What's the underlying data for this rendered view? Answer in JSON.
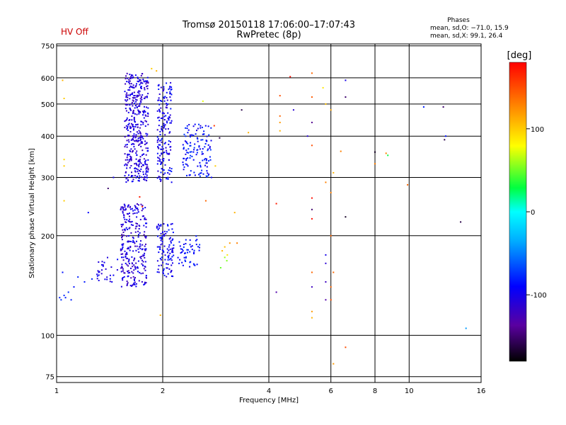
{
  "chart_data": {
    "type": "scatter",
    "title": "Tromsø 20150118 17:06:00–17:07:43",
    "subtitle": "RwPretec (8p)",
    "status": "HV Off",
    "xlabel": "Frequency [MHz]",
    "ylabel": "Stationary phase Virtual Height [km]",
    "xscale": "log",
    "yscale": "log",
    "xlim": [
      1,
      16
    ],
    "ylim": [
      72,
      760
    ],
    "xticks": [
      1,
      2,
      4,
      6,
      8,
      10,
      16
    ],
    "xtick_labels": [
      "1",
      "2",
      "4",
      "6",
      "8",
      "10",
      "16"
    ],
    "yticks": [
      75,
      100,
      200,
      300,
      400,
      500,
      600,
      750
    ],
    "ytick_labels": [
      "75",
      "100",
      "200",
      "300",
      "400",
      "500",
      "600",
      "750"
    ],
    "grid": true,
    "colorbar": {
      "label": "[deg]",
      "range": [
        -180,
        180
      ],
      "ticks": [
        100,
        0,
        -100
      ],
      "tick_labels": [
        "100",
        "0",
        "-100"
      ]
    },
    "stats": {
      "heading": "Phases",
      "line_o": "mean, sd,O: −71.0, 15.9",
      "line_x": "mean, sd,X:  99.1, 26.4"
    },
    "clusters": [
      {
        "f": [
          1.56,
          1.82
        ],
        "h": [
          290,
          620
        ],
        "phase": [
          -125,
          -90
        ],
        "n": 420
      },
      {
        "f": [
          1.93,
          2.12
        ],
        "h": [
          290,
          580
        ],
        "phase": [
          -115,
          -80
        ],
        "n": 170
      },
      {
        "f": [
          2.28,
          2.75
        ],
        "h": [
          300,
          440
        ],
        "phase": [
          -105,
          -70
        ],
        "n": 130
      },
      {
        "f": [
          1.52,
          1.8
        ],
        "h": [
          140,
          250
        ],
        "phase": [
          -125,
          -90
        ],
        "n": 280
      },
      {
        "f": [
          1.92,
          2.15
        ],
        "h": [
          150,
          220
        ],
        "phase": [
          -110,
          -80
        ],
        "n": 110
      },
      {
        "f": [
          2.2,
          2.55
        ],
        "h": [
          160,
          200
        ],
        "phase": [
          -100,
          -75
        ],
        "n": 50
      },
      {
        "f": [
          1.3,
          1.5
        ],
        "h": [
          145,
          175
        ],
        "phase": [
          -115,
          -85
        ],
        "n": 30
      }
    ],
    "points": [
      {
        "f": 1.02,
        "h": 130,
        "phase": -80
      },
      {
        "f": 1.03,
        "h": 128,
        "phase": -75
      },
      {
        "f": 1.05,
        "h": 132,
        "phase": -78
      },
      {
        "f": 1.06,
        "h": 130,
        "phase": -82
      },
      {
        "f": 1.08,
        "h": 135,
        "phase": -76
      },
      {
        "f": 1.1,
        "h": 128,
        "phase": -80
      },
      {
        "f": 1.12,
        "h": 140,
        "phase": -85
      },
      {
        "f": 1.04,
        "h": 155,
        "phase": -85
      },
      {
        "f": 1.15,
        "h": 150,
        "phase": -80
      },
      {
        "f": 1.2,
        "h": 145,
        "phase": -82
      },
      {
        "f": 1.26,
        "h": 148,
        "phase": -78
      },
      {
        "f": 1.23,
        "h": 235,
        "phase": -90
      },
      {
        "f": 1.45,
        "h": 300,
        "phase": -100
      },
      {
        "f": 1.4,
        "h": 278,
        "phase": -150
      },
      {
        "f": 1.72,
        "h": 262,
        "phase": 170
      },
      {
        "f": 1.75,
        "h": 245,
        "phase": 170
      },
      {
        "f": 1.04,
        "h": 590,
        "phase": 110
      },
      {
        "f": 1.05,
        "h": 520,
        "phase": 100
      },
      {
        "f": 1.05,
        "h": 340,
        "phase": 95
      },
      {
        "f": 1.05,
        "h": 325,
        "phase": 100
      },
      {
        "f": 1.05,
        "h": 255,
        "phase": 100
      },
      {
        "f": 1.86,
        "h": 640,
        "phase": 100
      },
      {
        "f": 1.92,
        "h": 630,
        "phase": 110
      },
      {
        "f": 1.97,
        "h": 115,
        "phase": 110
      },
      {
        "f": 2.6,
        "h": 510,
        "phase": 75
      },
      {
        "f": 2.8,
        "h": 430,
        "phase": 160
      },
      {
        "f": 2.75,
        "h": 300,
        "phase": -90
      },
      {
        "f": 2.9,
        "h": 395,
        "phase": -160
      },
      {
        "f": 2.82,
        "h": 325,
        "phase": 100
      },
      {
        "f": 2.65,
        "h": 255,
        "phase": 140
      },
      {
        "f": 2.95,
        "h": 180,
        "phase": 110
      },
      {
        "f": 3.0,
        "h": 185,
        "phase": 105
      },
      {
        "f": 3.05,
        "h": 175,
        "phase": 90
      },
      {
        "f": 3.1,
        "h": 190,
        "phase": 120
      },
      {
        "f": 3.0,
        "h": 172,
        "phase": 60
      },
      {
        "f": 3.04,
        "h": 168,
        "phase": 55
      },
      {
        "f": 2.92,
        "h": 160,
        "phase": 50
      },
      {
        "f": 3.25,
        "h": 190,
        "phase": 130
      },
      {
        "f": 3.2,
        "h": 235,
        "phase": 110
      },
      {
        "f": 3.35,
        "h": 480,
        "phase": -160
      },
      {
        "f": 3.5,
        "h": 410,
        "phase": 110
      },
      {
        "f": 4.3,
        "h": 530,
        "phase": 150
      },
      {
        "f": 4.3,
        "h": 460,
        "phase": 140
      },
      {
        "f": 4.3,
        "h": 440,
        "phase": 120
      },
      {
        "f": 4.3,
        "h": 415,
        "phase": 110
      },
      {
        "f": 4.2,
        "h": 250,
        "phase": 170
      },
      {
        "f": 4.2,
        "h": 135,
        "phase": -130
      },
      {
        "f": 4.6,
        "h": 605,
        "phase": 175
      },
      {
        "f": 4.7,
        "h": 480,
        "phase": -110
      },
      {
        "f": 5.3,
        "h": 620,
        "phase": 140
      },
      {
        "f": 5.3,
        "h": 525,
        "phase": 145
      },
      {
        "f": 5.3,
        "h": 440,
        "phase": -140
      },
      {
        "f": 5.3,
        "h": 375,
        "phase": 150
      },
      {
        "f": 5.3,
        "h": 260,
        "phase": 175
      },
      {
        "f": 5.3,
        "h": 240,
        "phase": -150
      },
      {
        "f": 5.3,
        "h": 225,
        "phase": 175
      },
      {
        "f": 5.3,
        "h": 155,
        "phase": 140
      },
      {
        "f": 5.3,
        "h": 140,
        "phase": -120
      },
      {
        "f": 5.3,
        "h": 118,
        "phase": 120
      },
      {
        "f": 5.3,
        "h": 113,
        "phase": 110
      },
      {
        "f": 5.15,
        "h": 400,
        "phase": -110
      },
      {
        "f": 5.7,
        "h": 560,
        "phase": 90
      },
      {
        "f": 5.8,
        "h": 500,
        "phase": 105
      },
      {
        "f": 5.8,
        "h": 290,
        "phase": 130
      },
      {
        "f": 5.8,
        "h": 175,
        "phase": -100
      },
      {
        "f": 5.8,
        "h": 165,
        "phase": -110
      },
      {
        "f": 5.8,
        "h": 145,
        "phase": -120
      },
      {
        "f": 5.8,
        "h": 128,
        "phase": -130
      },
      {
        "f": 6.0,
        "h": 480,
        "phase": 115
      },
      {
        "f": 6.0,
        "h": 270,
        "phase": 130
      },
      {
        "f": 6.0,
        "h": 200,
        "phase": 140
      },
      {
        "f": 6.0,
        "h": 140,
        "phase": 140
      },
      {
        "f": 6.0,
        "h": 128,
        "phase": 150
      },
      {
        "f": 6.1,
        "h": 310,
        "phase": 110
      },
      {
        "f": 6.1,
        "h": 155,
        "phase": 140
      },
      {
        "f": 6.1,
        "h": 82,
        "phase": 120
      },
      {
        "f": 6.6,
        "h": 590,
        "phase": -100
      },
      {
        "f": 6.6,
        "h": 525,
        "phase": -150
      },
      {
        "f": 6.6,
        "h": 228,
        "phase": -170
      },
      {
        "f": 6.6,
        "h": 92,
        "phase": 150
      },
      {
        "f": 6.4,
        "h": 360,
        "phase": 130
      },
      {
        "f": 8.0,
        "h": 358,
        "phase": -170
      },
      {
        "f": 8.0,
        "h": 330,
        "phase": 130
      },
      {
        "f": 8.6,
        "h": 355,
        "phase": 130
      },
      {
        "f": 8.7,
        "h": 350,
        "phase": 30
      },
      {
        "f": 9.9,
        "h": 285,
        "phase": 140
      },
      {
        "f": 11.0,
        "h": 490,
        "phase": -80
      },
      {
        "f": 12.5,
        "h": 490,
        "phase": -150
      },
      {
        "f": 12.6,
        "h": 390,
        "phase": -160
      },
      {
        "f": 12.7,
        "h": 400,
        "phase": -85
      },
      {
        "f": 14.0,
        "h": 220,
        "phase": -160
      },
      {
        "f": 14.5,
        "h": 105,
        "phase": -40
      }
    ]
  }
}
